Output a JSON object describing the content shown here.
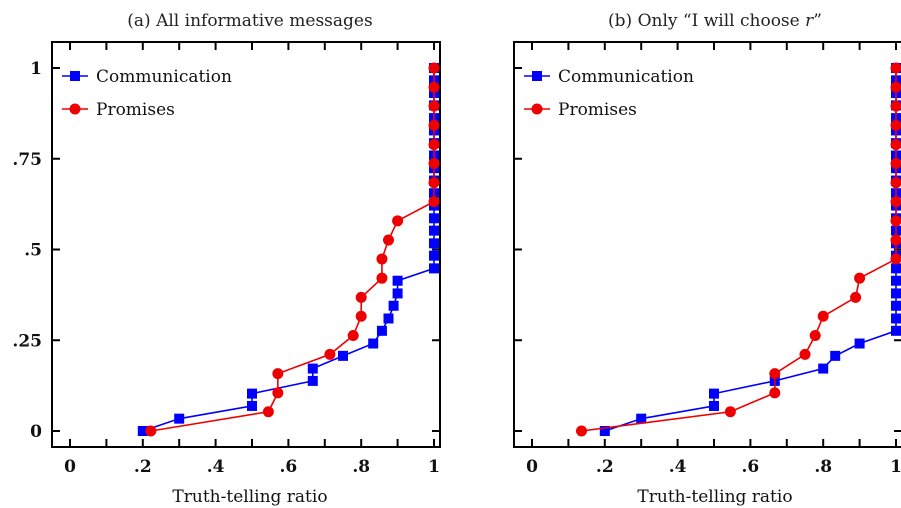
{
  "chart_data": [
    {
      "type": "line",
      "title": "(a) All informative messages",
      "xlabel": "Truth-telling ratio",
      "ylabel": "",
      "xlim": [
        0,
        1
      ],
      "ylim": [
        0,
        1
      ],
      "xticks": [
        0,
        0.1,
        0.2,
        0.3,
        0.4,
        0.5,
        0.6,
        0.7,
        0.8,
        0.9,
        1
      ],
      "xtick_labels": [
        "0",
        "",
        ".2",
        "",
        ".4",
        "",
        ".6",
        "",
        ".8",
        "",
        "1"
      ],
      "yticks": [
        0,
        0.25,
        0.5,
        0.75,
        1
      ],
      "ytick_labels": [
        "0",
        ".25",
        ".5",
        ".75",
        "1"
      ],
      "legend_position": "top-left",
      "series": [
        {
          "name": "Communication",
          "color": "#0000ff",
          "marker": "square",
          "points": [
            [
              0.2,
              0.0
            ],
            [
              0.3,
              0.034
            ],
            [
              0.5,
              0.069
            ],
            [
              0.5,
              0.103
            ],
            [
              0.667,
              0.138
            ],
            [
              0.667,
              0.172
            ],
            [
              0.75,
              0.207
            ],
            [
              0.833,
              0.241
            ],
            [
              0.857,
              0.276
            ],
            [
              0.875,
              0.31
            ],
            [
              0.889,
              0.345
            ],
            [
              0.9,
              0.379
            ],
            [
              0.9,
              0.414
            ],
            [
              1.0,
              0.448
            ],
            [
              1.0,
              0.483
            ],
            [
              1.0,
              0.517
            ],
            [
              1.0,
              0.552
            ],
            [
              1.0,
              0.586
            ],
            [
              1.0,
              0.621
            ],
            [
              1.0,
              0.655
            ],
            [
              1.0,
              0.69
            ],
            [
              1.0,
              0.724
            ],
            [
              1.0,
              0.759
            ],
            [
              1.0,
              0.793
            ],
            [
              1.0,
              0.828
            ],
            [
              1.0,
              0.862
            ],
            [
              1.0,
              0.897
            ],
            [
              1.0,
              0.931
            ],
            [
              1.0,
              0.966
            ],
            [
              1.0,
              1.0
            ]
          ]
        },
        {
          "name": "Promises",
          "color": "#ee0000",
          "marker": "circle",
          "points": [
            [
              0.222,
              0.0
            ],
            [
              0.545,
              0.053
            ],
            [
              0.571,
              0.105
            ],
            [
              0.571,
              0.158
            ],
            [
              0.714,
              0.211
            ],
            [
              0.778,
              0.263
            ],
            [
              0.8,
              0.316
            ],
            [
              0.8,
              0.368
            ],
            [
              0.857,
              0.421
            ],
            [
              0.857,
              0.474
            ],
            [
              0.875,
              0.526
            ],
            [
              0.9,
              0.579
            ],
            [
              1.0,
              0.632
            ],
            [
              1.0,
              0.684
            ],
            [
              1.0,
              0.737
            ],
            [
              1.0,
              0.789
            ],
            [
              1.0,
              0.842
            ],
            [
              1.0,
              0.895
            ],
            [
              1.0,
              0.947
            ],
            [
              1.0,
              1.0
            ]
          ]
        }
      ]
    },
    {
      "type": "line",
      "title": "(b) Only “I will choose r”",
      "xlabel": "Truth-telling ratio",
      "ylabel": "",
      "xlim": [
        0,
        1
      ],
      "ylim": [
        0,
        1
      ],
      "xticks": [
        0,
        0.1,
        0.2,
        0.3,
        0.4,
        0.5,
        0.6,
        0.7,
        0.8,
        0.9,
        1
      ],
      "xtick_labels": [
        "0",
        "",
        ".2",
        "",
        ".4",
        "",
        ".6",
        "",
        ".8",
        "",
        "1"
      ],
      "yticks": [
        0,
        0.25,
        0.5,
        0.75,
        1
      ],
      "ytick_labels": [
        "",
        "",
        "",
        "",
        ""
      ],
      "legend_position": "top-left",
      "series": [
        {
          "name": "Communication",
          "color": "#0000ff",
          "marker": "square",
          "points": [
            [
              0.2,
              0.0
            ],
            [
              0.3,
              0.034
            ],
            [
              0.5,
              0.069
            ],
            [
              0.5,
              0.103
            ],
            [
              0.667,
              0.138
            ],
            [
              0.8,
              0.172
            ],
            [
              0.833,
              0.207
            ],
            [
              0.9,
              0.241
            ],
            [
              1.0,
              0.276
            ],
            [
              1.0,
              0.31
            ],
            [
              1.0,
              0.345
            ],
            [
              1.0,
              0.379
            ],
            [
              1.0,
              0.414
            ],
            [
              1.0,
              0.448
            ],
            [
              1.0,
              0.483
            ],
            [
              1.0,
              0.517
            ],
            [
              1.0,
              0.552
            ],
            [
              1.0,
              0.586
            ],
            [
              1.0,
              0.621
            ],
            [
              1.0,
              0.655
            ],
            [
              1.0,
              0.69
            ],
            [
              1.0,
              0.724
            ],
            [
              1.0,
              0.759
            ],
            [
              1.0,
              0.793
            ],
            [
              1.0,
              0.828
            ],
            [
              1.0,
              0.862
            ],
            [
              1.0,
              0.897
            ],
            [
              1.0,
              0.931
            ],
            [
              1.0,
              0.966
            ],
            [
              1.0,
              1.0
            ]
          ]
        },
        {
          "name": "Promises",
          "color": "#ee0000",
          "marker": "circle",
          "points": [
            [
              0.136,
              0.0
            ],
            [
              0.545,
              0.053
            ],
            [
              0.667,
              0.105
            ],
            [
              0.667,
              0.158
            ],
            [
              0.75,
              0.211
            ],
            [
              0.778,
              0.263
            ],
            [
              0.8,
              0.316
            ],
            [
              0.889,
              0.368
            ],
            [
              0.9,
              0.421
            ],
            [
              1.0,
              0.474
            ],
            [
              1.0,
              0.526
            ],
            [
              1.0,
              0.579
            ],
            [
              1.0,
              0.632
            ],
            [
              1.0,
              0.684
            ],
            [
              1.0,
              0.737
            ],
            [
              1.0,
              0.789
            ],
            [
              1.0,
              0.842
            ],
            [
              1.0,
              0.895
            ],
            [
              1.0,
              0.947
            ],
            [
              1.0,
              1.0
            ]
          ]
        }
      ]
    }
  ]
}
